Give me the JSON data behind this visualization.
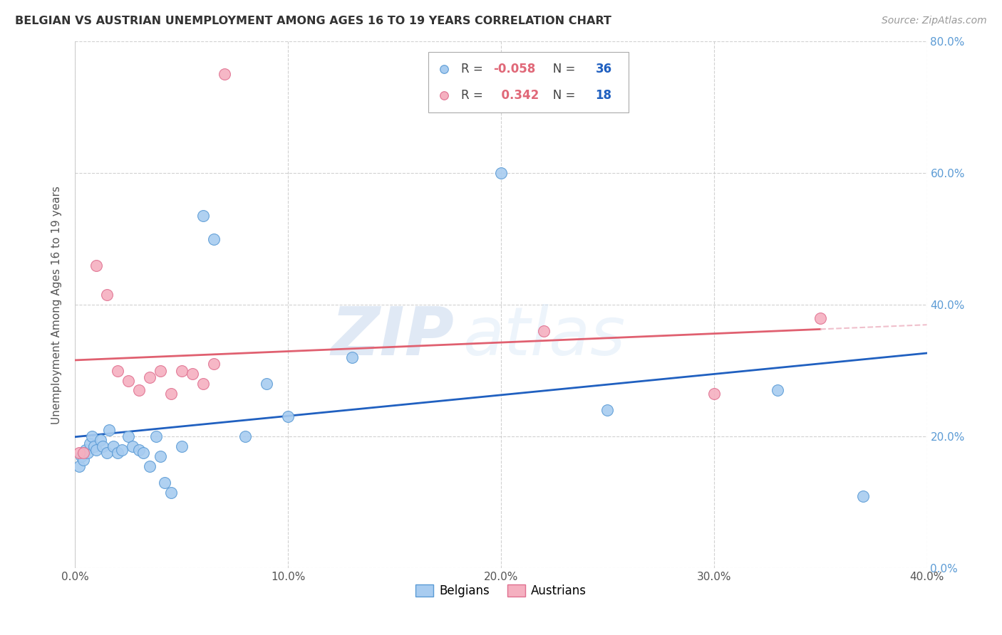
{
  "title": "BELGIAN VS AUSTRIAN UNEMPLOYMENT AMONG AGES 16 TO 19 YEARS CORRELATION CHART",
  "source": "Source: ZipAtlas.com",
  "ylabel": "Unemployment Among Ages 16 to 19 years",
  "xlim": [
    0.0,
    0.4
  ],
  "ylim": [
    0.0,
    0.8
  ],
  "xticks": [
    0.0,
    0.1,
    0.2,
    0.3,
    0.4
  ],
  "yticks": [
    0.0,
    0.2,
    0.4,
    0.6,
    0.8
  ],
  "xtick_labels": [
    "0.0%",
    "10.0%",
    "20.0%",
    "30.0%",
    "40.0%"
  ],
  "ytick_labels": [
    "0.0%",
    "20.0%",
    "40.0%",
    "60.0%",
    "80.0%"
  ],
  "belgian_color": "#A8CCF0",
  "austrian_color": "#F5B0C0",
  "belgian_edge_color": "#5B9BD5",
  "austrian_edge_color": "#E07090",
  "belgian_line_color": "#2060C0",
  "austrian_line_color": "#E06070",
  "austrian_line_dashed_color": "#F0C0CC",
  "legend_r_belgian": "-0.058",
  "legend_n_belgian": "36",
  "legend_r_austrian": "0.342",
  "legend_n_austrian": "18",
  "watermark_zip": "ZIP",
  "watermark_atlas": "atlas",
  "belgians_x": [
    0.002,
    0.003,
    0.004,
    0.005,
    0.006,
    0.007,
    0.008,
    0.009,
    0.01,
    0.012,
    0.013,
    0.015,
    0.016,
    0.018,
    0.02,
    0.022,
    0.025,
    0.027,
    0.03,
    0.032,
    0.035,
    0.038,
    0.04,
    0.042,
    0.045,
    0.05,
    0.06,
    0.065,
    0.08,
    0.09,
    0.1,
    0.13,
    0.2,
    0.25,
    0.33,
    0.37
  ],
  "belgians_y": [
    0.155,
    0.17,
    0.165,
    0.18,
    0.175,
    0.19,
    0.2,
    0.185,
    0.18,
    0.195,
    0.185,
    0.175,
    0.21,
    0.185,
    0.175,
    0.18,
    0.2,
    0.185,
    0.18,
    0.175,
    0.155,
    0.2,
    0.17,
    0.13,
    0.115,
    0.185,
    0.535,
    0.5,
    0.2,
    0.28,
    0.23,
    0.32,
    0.6,
    0.24,
    0.27,
    0.11
  ],
  "austrians_x": [
    0.002,
    0.004,
    0.01,
    0.015,
    0.02,
    0.025,
    0.03,
    0.035,
    0.04,
    0.045,
    0.05,
    0.055,
    0.06,
    0.065,
    0.07,
    0.22,
    0.3,
    0.35
  ],
  "austrians_y": [
    0.175,
    0.175,
    0.46,
    0.415,
    0.3,
    0.285,
    0.27,
    0.29,
    0.3,
    0.265,
    0.3,
    0.295,
    0.28,
    0.31,
    0.75,
    0.36,
    0.265,
    0.38
  ]
}
